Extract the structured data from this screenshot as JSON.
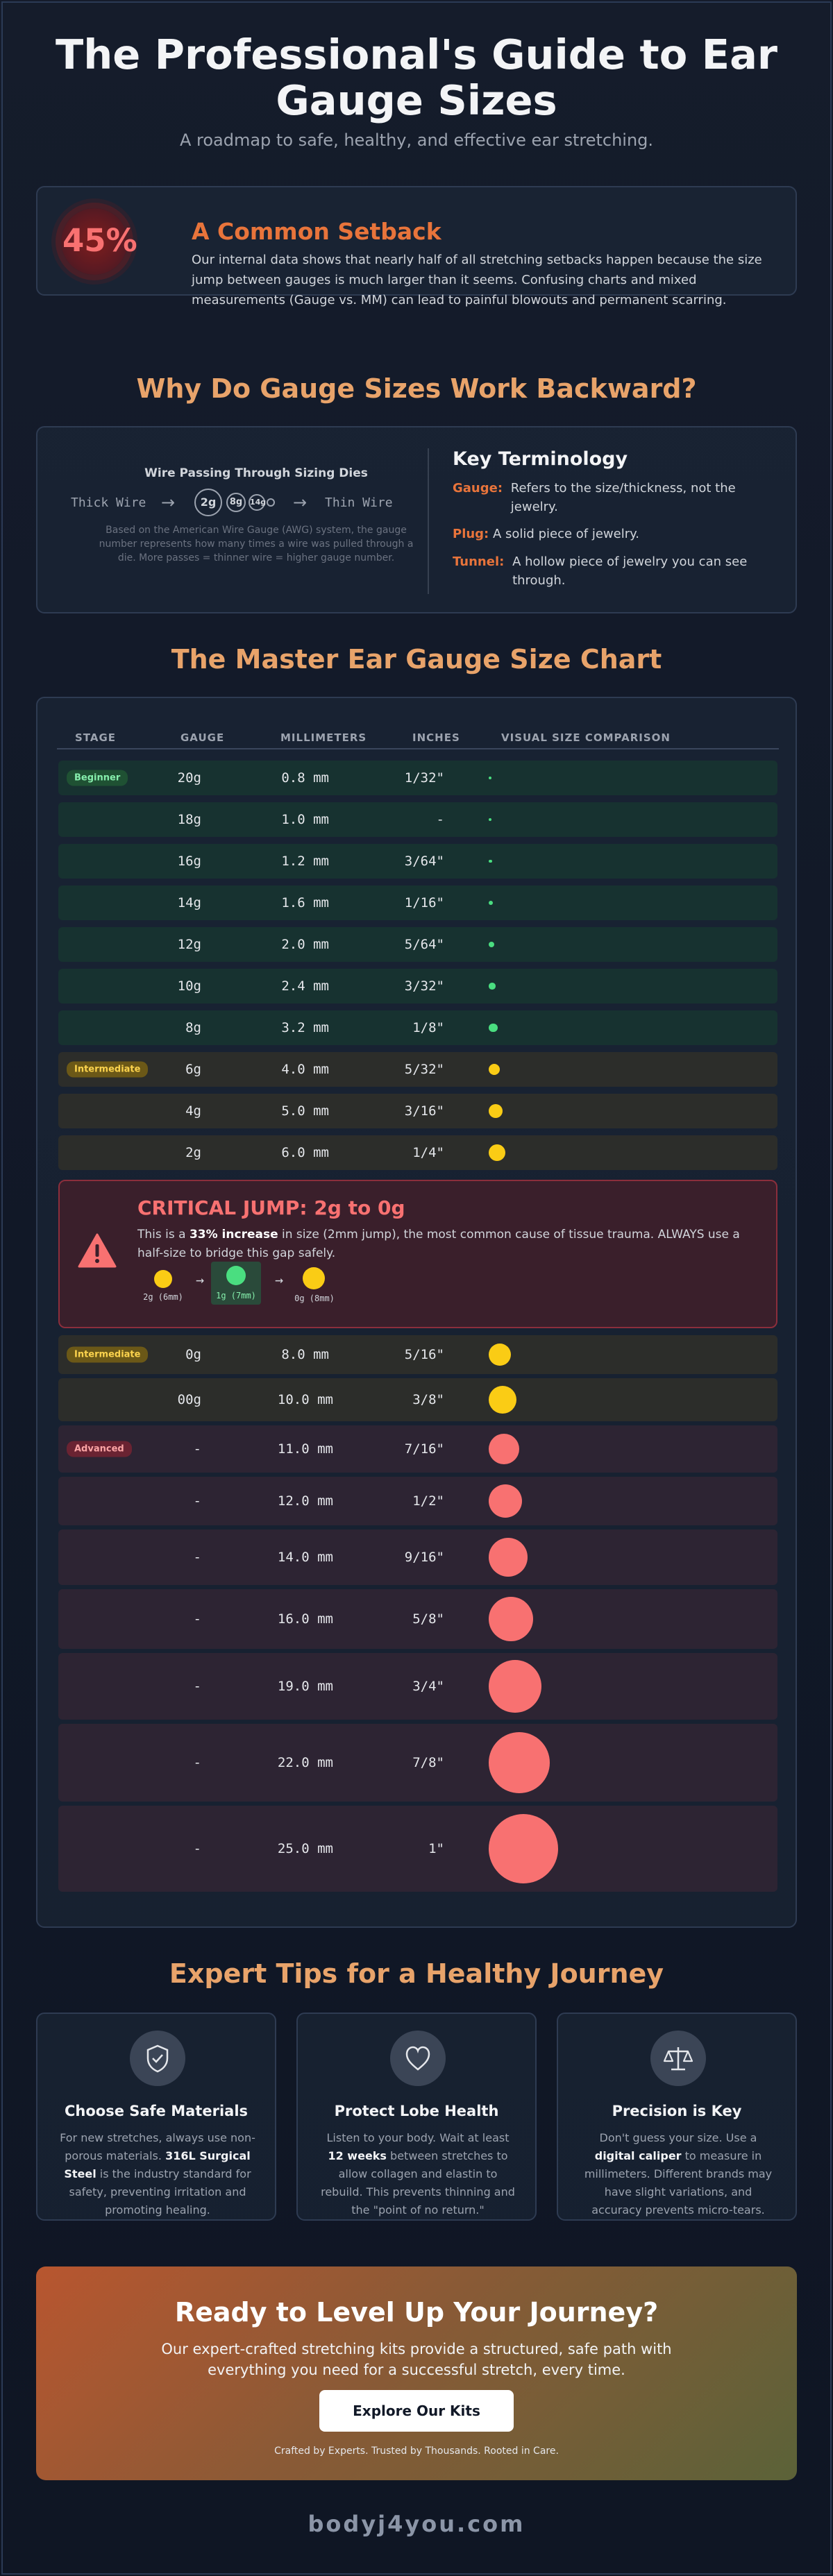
{
  "header": {
    "title_line1": "The Professional's Guide to Ear",
    "title_line2": "Gauge Sizes",
    "subtitle": "A roadmap to safe, healthy, and effective ear stretching."
  },
  "setback": {
    "percent": "45%",
    "title": "A Common Setback",
    "text": "Our internal data shows that nearly half of all stretching setbacks happen because the size jump between gauges is much larger than it seems. Confusing charts and mixed measurements (Gauge vs. MM) can lead to painful blowouts and permanent scarring."
  },
  "why": {
    "heading": "Why Do Gauge Sizes Work Backward?",
    "dies_title": "Wire Passing Through Sizing Dies",
    "thick_label": "Thick Wire",
    "thin_label": "Thin Wire",
    "arrow": "→",
    "dies": [
      "2g",
      "8g",
      "14g"
    ],
    "note": "Based on the American Wire Gauge (AWG) system, the gauge number represents how many times a wire was pulled through a die. More passes = thinner wire = higher gauge number.",
    "terms_title": "Key Terminology",
    "terms": [
      {
        "term": "Gauge:",
        "def": "Refers to the size/thickness, not the jewelry."
      },
      {
        "term": "Plug:",
        "def": "A solid piece of jewelry."
      },
      {
        "term": "Tunnel:",
        "def": "A hollow piece of jewelry you can see through."
      }
    ]
  },
  "chart": {
    "heading": "The Master Ear Gauge Size Chart",
    "columns": [
      "STAGE",
      "GAUGE",
      "MILLIMETERS",
      "INCHES",
      "VISUAL SIZE COMPARISON"
    ],
    "rows": [
      {
        "stage": "Beginner",
        "gauge": "20g",
        "mm": "0.8 mm",
        "inch": "1/32\"",
        "size_mm": 0.8,
        "tier": "beg"
      },
      {
        "stage": "",
        "gauge": "18g",
        "mm": "1.0 mm",
        "inch": "-",
        "size_mm": 1.0,
        "tier": "beg"
      },
      {
        "stage": "",
        "gauge": "16g",
        "mm": "1.2 mm",
        "inch": "3/64\"",
        "size_mm": 1.2,
        "tier": "beg"
      },
      {
        "stage": "",
        "gauge": "14g",
        "mm": "1.6 mm",
        "inch": "1/16\"",
        "size_mm": 1.6,
        "tier": "beg"
      },
      {
        "stage": "",
        "gauge": "12g",
        "mm": "2.0 mm",
        "inch": "5/64\"",
        "size_mm": 2.0,
        "tier": "beg"
      },
      {
        "stage": "",
        "gauge": "10g",
        "mm": "2.4 mm",
        "inch": "3/32\"",
        "size_mm": 2.4,
        "tier": "beg"
      },
      {
        "stage": "",
        "gauge": "8g",
        "mm": "3.2 mm",
        "inch": "1/8\"",
        "size_mm": 3.2,
        "tier": "beg"
      },
      {
        "stage": "Intermediate",
        "gauge": "6g",
        "mm": "4.0 mm",
        "inch": "5/32\"",
        "size_mm": 4.0,
        "tier": "int"
      },
      {
        "stage": "",
        "gauge": "4g",
        "mm": "5.0 mm",
        "inch": "3/16\"",
        "size_mm": 5.0,
        "tier": "int"
      },
      {
        "stage": "",
        "gauge": "2g",
        "mm": "6.0 mm",
        "inch": "1/4\"",
        "size_mm": 6.0,
        "tier": "int"
      },
      {
        "stage": "Intermediate",
        "gauge": "0g",
        "mm": "8.0 mm",
        "inch": "5/16\"",
        "size_mm": 8.0,
        "tier": "int"
      },
      {
        "stage": "",
        "gauge": "00g",
        "mm": "10.0 mm",
        "inch": "3/8\"",
        "size_mm": 10.0,
        "tier": "int"
      },
      {
        "stage": "Advanced",
        "gauge": "-",
        "mm": "11.0 mm",
        "inch": "7/16\"",
        "size_mm": 11.0,
        "tier": "adv"
      },
      {
        "stage": "",
        "gauge": "-",
        "mm": "12.0 mm",
        "inch": "1/2\"",
        "size_mm": 12.0,
        "tier": "adv"
      },
      {
        "stage": "",
        "gauge": "-",
        "mm": "14.0 mm",
        "inch": "9/16\"",
        "size_mm": 14.0,
        "tier": "adv"
      },
      {
        "stage": "",
        "gauge": "-",
        "mm": "16.0 mm",
        "inch": "5/8\"",
        "size_mm": 16.0,
        "tier": "adv"
      },
      {
        "stage": "",
        "gauge": "-",
        "mm": "19.0 mm",
        "inch": "3/4\"",
        "size_mm": 19.0,
        "tier": "adv"
      },
      {
        "stage": "",
        "gauge": "-",
        "mm": "22.0 mm",
        "inch": "7/8\"",
        "size_mm": 22.0,
        "tier": "adv"
      },
      {
        "stage": "",
        "gauge": "-",
        "mm": "25.0 mm",
        "inch": "1\"",
        "size_mm": 25.0,
        "tier": "adv"
      }
    ],
    "critical": {
      "title": "CRITICAL JUMP: 2g to 0g",
      "text_before": "This is a ",
      "text_bold": "33% increase",
      "text_after": " in size (2mm jump), the most common cause of tissue trauma. ALWAYS use a half-size to bridge this gap safely.",
      "steps": [
        "2g (6mm)",
        "1g (7mm)",
        "0g (8mm)"
      ],
      "arrow": "→"
    },
    "colors": {
      "beg": "#4ade80",
      "int": "#facc15",
      "adv": "#f87171"
    }
  },
  "tips": {
    "heading": "Expert Tips for a Healthy Journey",
    "items": [
      {
        "title": "Choose Safe Materials",
        "icon": "shield-check-icon",
        "p1": "For new stretches, always use non-porous materials. ",
        "b": "316L Surgical Steel",
        "p2": " is the industry standard for safety, preventing irritation and promoting healing."
      },
      {
        "title": "Protect Lobe Health",
        "icon": "heart-icon",
        "p1": "Listen to your body. Wait at least ",
        "b": "12 weeks",
        "p2": " between stretches to allow collagen and elastin to rebuild. This prevents thinning and the \"point of no return.\""
      },
      {
        "title": "Precision is Key",
        "icon": "scale-icon",
        "p1": "Don't guess your size. Use a ",
        "b": "digital caliper",
        "p2": " to measure in millimeters. Different brands may have slight variations, and accuracy prevents micro-tears."
      }
    ]
  },
  "cta": {
    "title": "Ready to Level Up Your Journey?",
    "text": "Our expert-crafted stretching kits provide a structured, safe path with everything you need for a successful stretch, every time.",
    "button": "Explore Our Kits",
    "tagline": "Crafted by Experts. Trusted by Thousands. Rooted in Care."
  },
  "footer": {
    "site": "bodyj4you.com"
  }
}
